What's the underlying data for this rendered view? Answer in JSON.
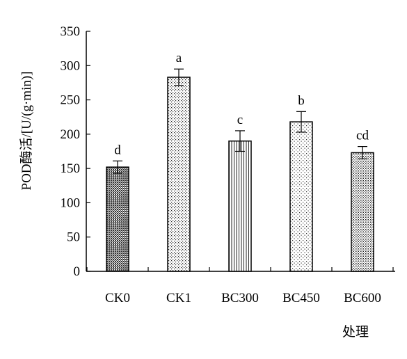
{
  "chart_data": {
    "type": "bar",
    "title": "",
    "xlabel": "处理",
    "ylabel": "POD酶活/[U/(g·min)]",
    "ylim": [
      0,
      350
    ],
    "yticks": [
      0,
      50,
      100,
      150,
      200,
      250,
      300,
      350
    ],
    "grid": false,
    "categories": [
      "CK0",
      "CK1",
      "BC300",
      "BC450",
      "BC600"
    ],
    "values": [
      152,
      283,
      190,
      218,
      173
    ],
    "errors": [
      9,
      12,
      15,
      15,
      9
    ],
    "significance": [
      "d",
      "a",
      "c",
      "b",
      "cd"
    ],
    "patterns": [
      "dense-dots",
      "fine-dots",
      "vertical-lines",
      "sparse-dots",
      "medium-dots"
    ]
  }
}
